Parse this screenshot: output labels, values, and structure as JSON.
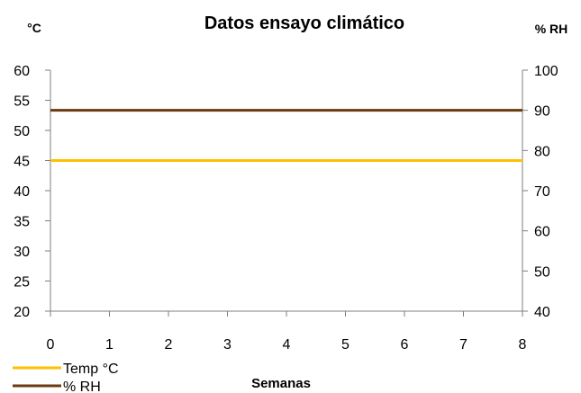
{
  "chart_data": {
    "type": "line",
    "title": "Datos ensayo climático",
    "xlabel": "Semanas",
    "ylabel_left": "°C",
    "ylabel_right": "% RH",
    "x": [
      0,
      1,
      2,
      3,
      4,
      5,
      6,
      7,
      8
    ],
    "xlim": [
      0,
      8
    ],
    "ylim_left": [
      20,
      60
    ],
    "ylim_right": [
      40,
      100
    ],
    "yticks_left": [
      20,
      25,
      30,
      35,
      40,
      45,
      50,
      55,
      60
    ],
    "yticks_right": [
      40,
      50,
      60,
      70,
      80,
      90,
      100
    ],
    "grid": false,
    "legend_position": "bottom-left",
    "series": [
      {
        "name": "Temp °C",
        "axis": "left",
        "color": "#FFC000",
        "values": [
          45,
          45,
          45,
          45,
          45,
          45,
          45,
          45,
          45
        ]
      },
      {
        "name": "% RH",
        "axis": "right",
        "color": "#6B3A10",
        "values": [
          90,
          90,
          90,
          90,
          90,
          90,
          90,
          90,
          90
        ]
      }
    ]
  }
}
